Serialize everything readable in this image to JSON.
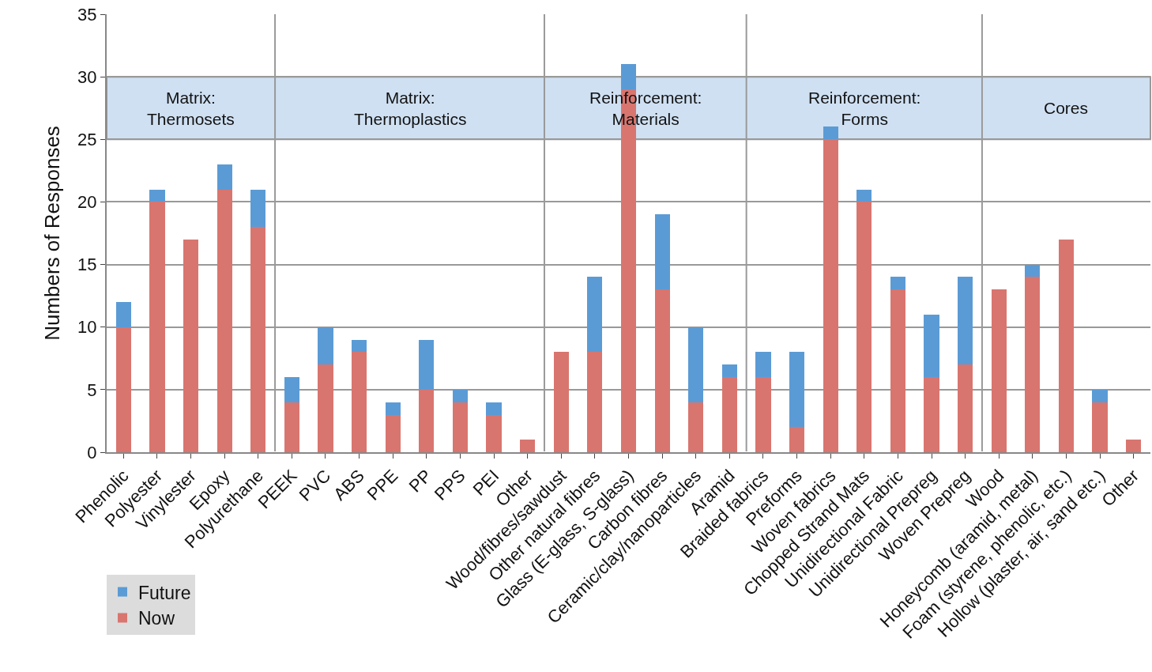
{
  "chart_data": {
    "type": "bar",
    "stacked": true,
    "ylabel": "Numbers of Responses",
    "categories": [
      "Phenolic",
      "Polyester",
      "Vinylester",
      "Epoxy",
      "Polyurethane",
      "PEEK",
      "PVC",
      "ABS",
      "PPE",
      "PP",
      "PPS",
      "PEI",
      "Other",
      "Wood/fibres/sawdust",
      "Other natural fibres",
      "Glass (E-glass, S-glass)",
      "Carbon fibres",
      "Ceramic/clay/nanoparticles",
      "Aramid",
      "Braided fabrics",
      "Preforms",
      "Woven fabrics",
      "Chopped Strand Mats",
      "Unidirectional Fabric",
      "Unidirectional Prepreg",
      "Woven Prepreg",
      "Wood",
      "Honeycomb (aramid, metal)",
      "Foam (styrene, phenolic, etc.)",
      "Hollow (plaster, air, sand etc.)",
      "Other"
    ],
    "series": [
      {
        "name": "Now",
        "color": "#d9756f",
        "values": [
          10,
          20,
          17,
          21,
          18,
          4,
          7,
          8,
          3,
          5,
          4,
          3,
          1,
          8,
          8,
          29,
          13,
          4,
          6,
          6,
          2,
          25,
          20,
          13,
          6,
          7,
          13,
          14,
          17,
          4,
          1
        ]
      },
      {
        "name": "Future",
        "color": "#5b9bd5",
        "values": [
          2,
          1,
          0,
          2,
          3,
          2,
          3,
          1,
          1,
          4,
          1,
          1,
          0,
          0,
          6,
          2,
          6,
          6,
          1,
          2,
          6,
          1,
          1,
          1,
          5,
          7,
          0,
          1,
          0,
          1,
          0
        ]
      }
    ],
    "ylim": [
      0,
      35
    ],
    "yticks": [
      0,
      5,
      10,
      15,
      20,
      25,
      30,
      35
    ],
    "grid": "y",
    "legend": "bottom left",
    "bands": [
      {
        "axis": "y",
        "from": 25,
        "to": 30,
        "color": "#cfe0f2"
      }
    ],
    "annotations": [
      "Matrix:\nThermosets",
      "Matrix:\nThermoplastics",
      "Reinforcement:\nMaterials",
      "Reinforcement:\nForms",
      "Cores"
    ]
  }
}
